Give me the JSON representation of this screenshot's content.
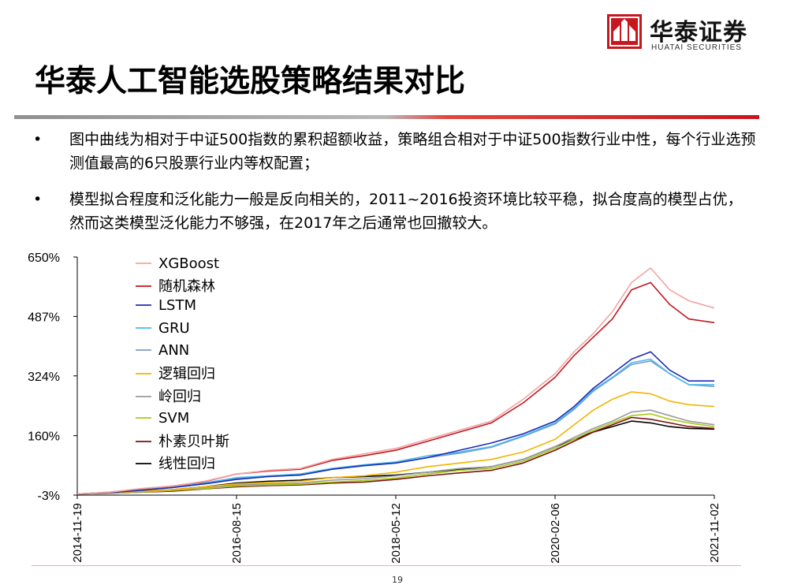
{
  "header": {
    "logo_cn": "华泰证券",
    "logo_en": "HUATAI SECURITIES"
  },
  "title": "华泰人工智能选股策略结果对比",
  "bullets": [
    "图中曲线为相对于中证500指数的累积超额收益，策略组合相对于中证500指数行业中性，每个行业选预测值最高的6只股票行业内等权配置；",
    "模型拟合程度和泛化能力一般是反向相关的，2011~2016投资环境比较平稳，拟合度高的模型占优，然而这类模型泛化能力不够强，在2017年之后通常也回撤较大。"
  ],
  "bullet_symbol": "•",
  "page_number": "19",
  "colors": {
    "brand_red": "#c8161e",
    "rule_gray": "#a0a0a0"
  },
  "chart_data": {
    "type": "line",
    "title": "",
    "xlabel": "",
    "ylabel": "",
    "ylim": [
      -3,
      650
    ],
    "ytick_labels": [
      "650%",
      "487%",
      "324%",
      "160%",
      "-3%"
    ],
    "ytick_values": [
      650,
      487,
      324,
      160,
      -3
    ],
    "xtick_labels": [
      "2014-11-19",
      "2016-08-15",
      "2018-05-12",
      "2020-02-06",
      "2021-11-02"
    ],
    "legend_position": "top-left",
    "x": [
      0,
      0.05,
      0.1,
      0.15,
      0.2,
      0.25,
      0.3,
      0.35,
      0.4,
      0.45,
      0.5,
      0.55,
      0.6,
      0.65,
      0.7,
      0.75,
      0.78,
      0.81,
      0.84,
      0.87,
      0.9,
      0.93,
      0.96,
      1.0
    ],
    "series": [
      {
        "name": "XGBoost",
        "color": "#f4a3a3",
        "values": [
          0,
          5,
          15,
          22,
          35,
          55,
          65,
          70,
          95,
          110,
          125,
          150,
          175,
          200,
          260,
          330,
          390,
          440,
          500,
          580,
          620,
          560,
          530,
          510
        ]
      },
      {
        "name": "随机森林",
        "color": "#c0161c",
        "values": [
          0,
          5,
          14,
          22,
          34,
          55,
          63,
          68,
          92,
          105,
          120,
          145,
          170,
          195,
          250,
          320,
          380,
          430,
          480,
          560,
          580,
          520,
          480,
          470
        ]
      },
      {
        "name": "LSTM",
        "color": "#1b2db5",
        "values": [
          0,
          4,
          10,
          18,
          28,
          40,
          48,
          52,
          68,
          78,
          85,
          100,
          120,
          140,
          165,
          200,
          240,
          290,
          330,
          370,
          390,
          340,
          310,
          310
        ]
      },
      {
        "name": "GRU",
        "color": "#49b8ea",
        "values": [
          0,
          4,
          12,
          18,
          30,
          45,
          50,
          55,
          70,
          80,
          88,
          105,
          115,
          130,
          160,
          195,
          235,
          285,
          320,
          360,
          370,
          330,
          300,
          300
        ]
      },
      {
        "name": "ANN",
        "color": "#7a9bcb",
        "values": [
          0,
          4,
          11,
          18,
          28,
          42,
          48,
          53,
          68,
          77,
          85,
          100,
          112,
          128,
          158,
          192,
          232,
          282,
          318,
          355,
          365,
          330,
          300,
          295
        ]
      },
      {
        "name": "逻辑回归",
        "color": "#f2b400",
        "values": [
          0,
          3,
          8,
          12,
          20,
          28,
          32,
          35,
          45,
          50,
          60,
          75,
          85,
          95,
          115,
          150,
          190,
          230,
          260,
          280,
          275,
          255,
          245,
          240
        ]
      },
      {
        "name": "岭回归",
        "color": "#9c9c9c",
        "values": [
          0,
          2,
          6,
          12,
          18,
          25,
          28,
          30,
          38,
          42,
          50,
          60,
          70,
          75,
          95,
          130,
          155,
          180,
          200,
          225,
          230,
          215,
          200,
          190
        ]
      },
      {
        "name": "SVM",
        "color": "#a8c916",
        "values": [
          0,
          2,
          5,
          10,
          15,
          22,
          25,
          27,
          33,
          37,
          44,
          55,
          65,
          70,
          90,
          125,
          150,
          175,
          195,
          215,
          220,
          205,
          195,
          185
        ]
      },
      {
        "name": "朴素贝叶斯",
        "color": "#7a1212",
        "values": [
          0,
          2,
          5,
          8,
          14,
          20,
          23,
          25,
          30,
          33,
          40,
          50,
          58,
          65,
          85,
          120,
          145,
          170,
          190,
          210,
          205,
          195,
          185,
          180
        ]
      },
      {
        "name": "线性回归",
        "color": "#000000",
        "values": [
          0,
          3,
          8,
          12,
          20,
          30,
          35,
          38,
          45,
          48,
          52,
          60,
          68,
          75,
          95,
          130,
          150,
          170,
          185,
          200,
          195,
          185,
          180,
          178
        ]
      }
    ]
  }
}
